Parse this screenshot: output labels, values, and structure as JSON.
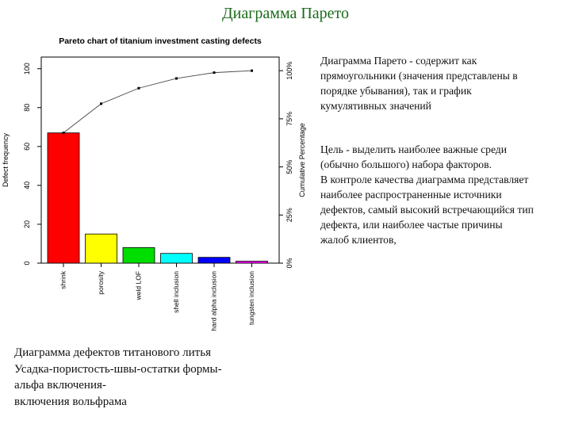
{
  "slide": {
    "title": "Диаграмма Парето",
    "description_p1": "Диаграмма Парето - содержит как\nпрямоугольники (значения представлены в\nпорядке убывания), так и график\nкумулятивных значений",
    "description_p2": "Цель - выделить наиболее важные среди\n(обычно большого) набора факторов.\nВ контроле качества диаграмма представляет\nнаиболее распространенные источники\nдефектов, самый высокий встречающийся тип\n дефекта, или наиболее частые причины\nжалоб клиентов,",
    "caption": "Диаграмма дефектов титанового литья\nУсадка-пористость-швы-остатки формы-\nальфа включения-\nвключения вольфрама"
  },
  "chart_data": {
    "type": "bar",
    "title": "Pareto chart of titanium investment casting defects",
    "ylabel": "Defect frequency",
    "y2label": "Cumulative Percentage",
    "ylim": [
      0,
      106
    ],
    "yticks": [
      0,
      20,
      40,
      60,
      80,
      100
    ],
    "y2ticks": [
      "0%",
      "25%",
      "50%",
      "75%",
      "100%"
    ],
    "categories": [
      "shrink",
      "porosity",
      "weld LOF",
      "shell inclusion",
      "hard alpha inclusion",
      "tungsten inclusion"
    ],
    "values": [
      67,
      15,
      8,
      5,
      3,
      1
    ],
    "bar_colors": [
      "#ff0000",
      "#ffff00",
      "#00dd00",
      "#00ffff",
      "#0000ff",
      "#ff00ff"
    ],
    "cumulative": {
      "type": "line",
      "values": [
        67,
        82,
        90,
        95,
        98,
        99
      ]
    }
  }
}
